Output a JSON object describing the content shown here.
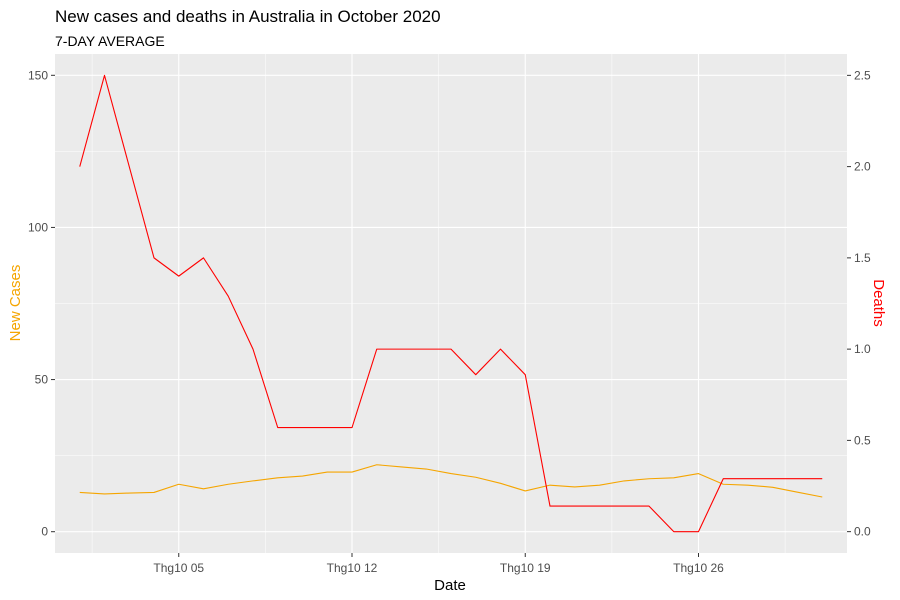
{
  "chart_data": {
    "type": "line",
    "title": "New cases and deaths in Australia in October 2020",
    "subtitle": "7-DAY AVERAGE",
    "xlabel": "Date",
    "ylabel_left": "New Cases",
    "ylabel_right": "Deaths",
    "x": [
      "2020-10-01",
      "2020-10-02",
      "2020-10-03",
      "2020-10-04",
      "2020-10-05",
      "2020-10-06",
      "2020-10-07",
      "2020-10-08",
      "2020-10-09",
      "2020-10-10",
      "2020-10-11",
      "2020-10-12",
      "2020-10-13",
      "2020-10-14",
      "2020-10-15",
      "2020-10-16",
      "2020-10-17",
      "2020-10-18",
      "2020-10-19",
      "2020-10-20",
      "2020-10-21",
      "2020-10-22",
      "2020-10-23",
      "2020-10-24",
      "2020-10-25",
      "2020-10-26",
      "2020-10-27",
      "2020-10-28",
      "2020-10-29",
      "2020-10-30",
      "2020-10-31"
    ],
    "x_range": [
      "2020-09-30",
      "2020-11-01"
    ],
    "x_ticks": [
      {
        "date": "2020-10-05",
        "label": "Thg10 05"
      },
      {
        "date": "2020-10-12",
        "label": "Thg10 12"
      },
      {
        "date": "2020-10-19",
        "label": "Thg10 19"
      },
      {
        "date": "2020-10-26",
        "label": "Thg10 26"
      }
    ],
    "y_left": {
      "range": [
        -7,
        157
      ],
      "ticks": [
        0,
        50,
        100,
        150
      ],
      "tick_labels": [
        "0",
        "50",
        "100",
        "150"
      ]
    },
    "y_right": {
      "range": [
        -0.117,
        2.617
      ],
      "ticks": [
        0.0,
        0.5,
        1.0,
        1.5,
        2.0,
        2.5
      ],
      "tick_labels": [
        "0.0",
        "0.5",
        "1.0",
        "1.5",
        "2.0",
        "2.5"
      ]
    },
    "series": [
      {
        "axis": "left",
        "color": "#f5a500",
        "values": [
          12.9,
          12.4,
          12.7,
          12.9,
          15.6,
          14.1,
          15.6,
          16.7,
          17.7,
          18.3,
          19.6,
          19.6,
          22.0,
          21.3,
          20.6,
          19.1,
          17.9,
          15.9,
          13.4,
          15.3,
          14.7,
          15.3,
          16.7,
          17.4,
          17.7,
          19.1,
          15.6,
          15.3,
          14.6,
          13.0,
          11.4
        ]
      },
      {
        "axis": "right",
        "color": "#ff0000",
        "values": [
          2.0,
          2.5,
          2.0,
          1.5,
          1.4,
          1.5,
          1.29,
          1.0,
          0.57,
          0.57,
          0.57,
          0.57,
          1.0,
          1.0,
          1.0,
          1.0,
          0.86,
          1.0,
          0.86,
          0.14,
          0.14,
          0.14,
          0.14,
          0.14,
          0.0,
          0.0,
          0.29,
          0.29,
          0.29,
          0.29,
          0.29
        ]
      }
    ],
    "grid": true,
    "background": "#ebebeb",
    "gridline_color": "#ffffff",
    "left_axis_title_color": "#f5a500",
    "right_axis_title_color": "#ff0000"
  }
}
